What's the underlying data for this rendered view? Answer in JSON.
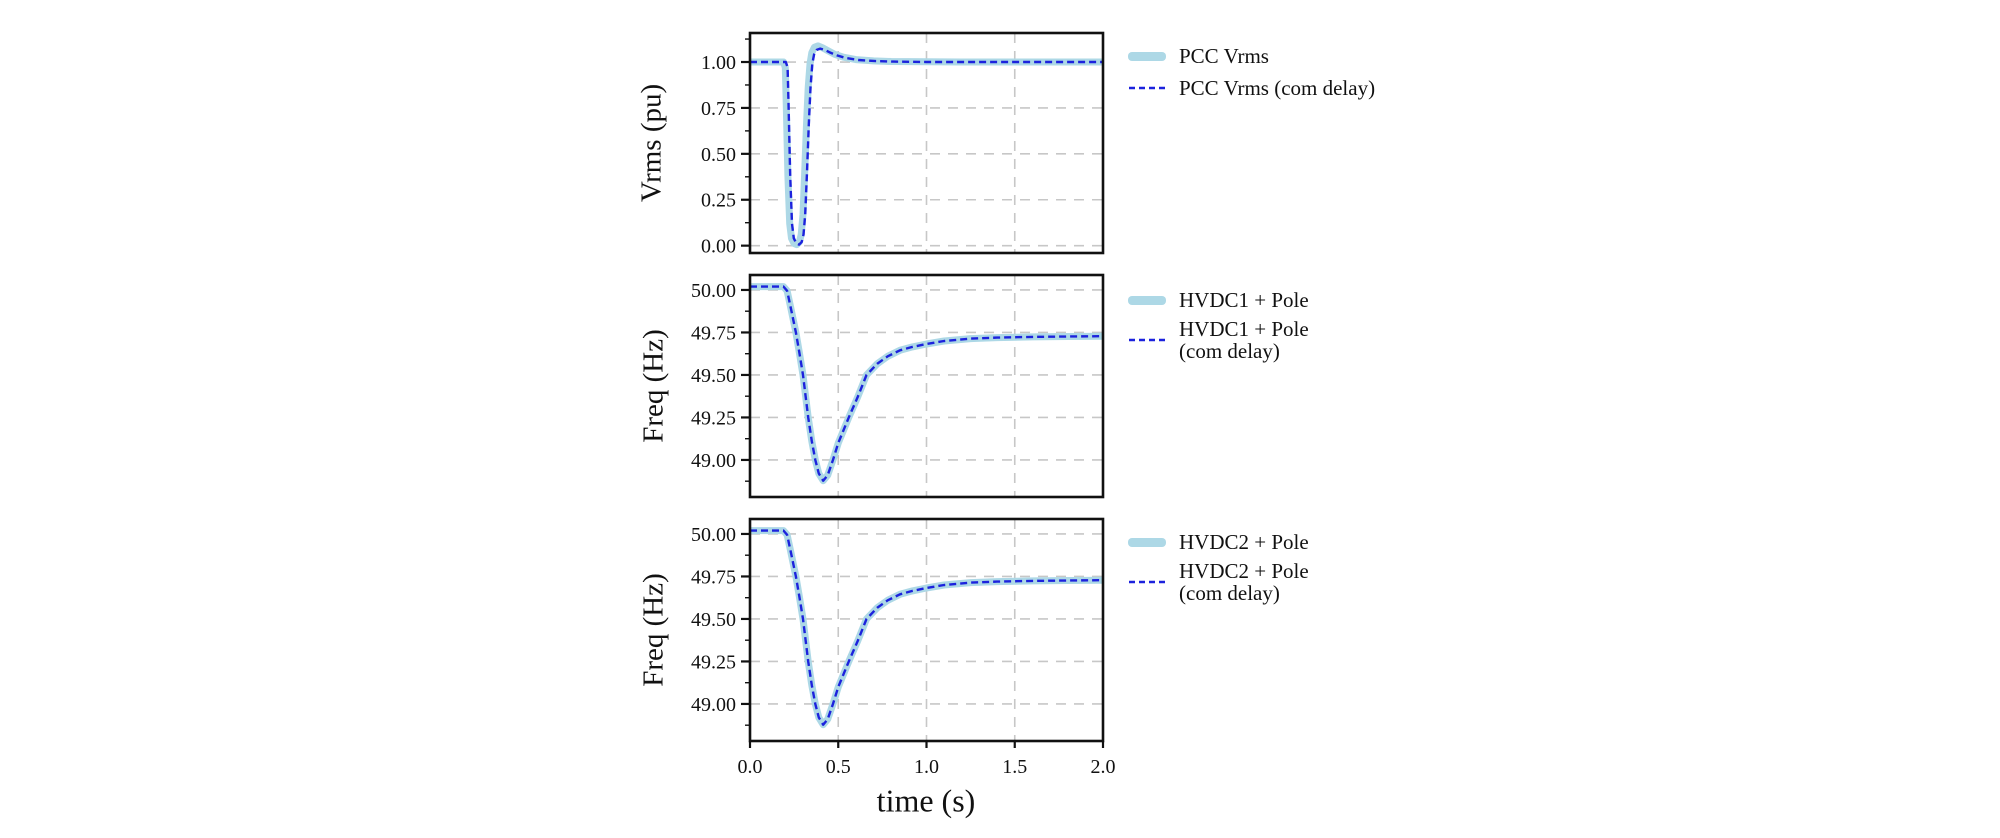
{
  "figure": {
    "colors": {
      "band": "#ADD8E6",
      "dash": "#1C22DD",
      "grid": "#C7C7C7",
      "frame": "#111111",
      "text": "#111111"
    },
    "x_axis": {
      "label": "time (s)",
      "lim": [
        0,
        2
      ],
      "ticks": [
        0,
        0.5,
        1,
        1.5,
        2
      ],
      "tick_labels": [
        "0.0",
        "0.5",
        "1.0",
        "1.5",
        "2.0"
      ]
    }
  },
  "chart_data": [
    {
      "type": "line",
      "ylabel": "Vrms (pu)",
      "ylim": [
        -0.04,
        1.158
      ],
      "grid": true,
      "yticks": [
        {
          "v": 1.0,
          "label": "1.00"
        },
        {
          "v": 0.75,
          "label": "0.75"
        },
        {
          "v": 0.5,
          "label": "0.50"
        },
        {
          "v": 0.25,
          "label": "0.25"
        },
        {
          "v": 0.0,
          "label": "0.00"
        }
      ],
      "yminor": [
        1.125,
        0.875,
        0.625,
        0.375,
        0.125
      ],
      "legend": [
        {
          "style": "band",
          "lines": [
            "PCC Vrms"
          ]
        },
        {
          "style": "dash",
          "lines": [
            "PCC Vrms (com delay)"
          ]
        }
      ],
      "series": [
        {
          "name": "PCC Vrms",
          "role": "band",
          "points": [
            [
              0,
              1.0
            ],
            [
              0.19,
              1.0
            ],
            [
              0.2,
              0.97
            ],
            [
              0.205,
              0.78
            ],
            [
              0.215,
              0.38
            ],
            [
              0.225,
              0.12
            ],
            [
              0.235,
              0.04
            ],
            [
              0.25,
              0.012
            ],
            [
              0.265,
              0.006
            ],
            [
              0.28,
              0.02
            ],
            [
              0.29,
              0.06
            ],
            [
              0.3,
              0.17
            ],
            [
              0.31,
              0.4
            ],
            [
              0.32,
              0.66
            ],
            [
              0.33,
              0.86
            ],
            [
              0.34,
              0.99
            ],
            [
              0.35,
              1.05
            ],
            [
              0.365,
              1.08
            ],
            [
              0.385,
              1.088
            ],
            [
              0.41,
              1.078
            ],
            [
              0.44,
              1.062
            ],
            [
              0.48,
              1.042
            ],
            [
              0.53,
              1.026
            ],
            [
              0.6,
              1.013
            ],
            [
              0.7,
              1.006
            ],
            [
              0.8,
              1.003
            ],
            [
              1.0,
              1.001
            ],
            [
              1.2,
              1.0
            ],
            [
              1.6,
              1.0
            ],
            [
              2.0,
              1.0
            ]
          ]
        },
        {
          "name": "PCC Vrms (com delay)",
          "role": "dash",
          "points": [
            [
              0,
              1.0
            ],
            [
              0.203,
              1.0
            ],
            [
              0.213,
              0.97
            ],
            [
              0.218,
              0.78
            ],
            [
              0.228,
              0.38
            ],
            [
              0.238,
              0.12
            ],
            [
              0.248,
              0.04
            ],
            [
              0.263,
              0.012
            ],
            [
              0.278,
              0.006
            ],
            [
              0.293,
              0.02
            ],
            [
              0.303,
              0.06
            ],
            [
              0.313,
              0.17
            ],
            [
              0.323,
              0.4
            ],
            [
              0.333,
              0.66
            ],
            [
              0.343,
              0.86
            ],
            [
              0.353,
              0.99
            ],
            [
              0.363,
              1.042
            ],
            [
              0.378,
              1.066
            ],
            [
              0.398,
              1.073
            ],
            [
              0.423,
              1.066
            ],
            [
              0.453,
              1.052
            ],
            [
              0.493,
              1.036
            ],
            [
              0.543,
              1.022
            ],
            [
              0.613,
              1.011
            ],
            [
              0.713,
              1.005
            ],
            [
              0.813,
              1.002
            ],
            [
              1.0,
              1.0
            ],
            [
              1.5,
              1.0
            ],
            [
              2.0,
              1.0
            ]
          ]
        }
      ]
    },
    {
      "type": "line",
      "ylabel": "Freq (Hz)",
      "ylim": [
        48.782,
        50.088
      ],
      "grid": true,
      "yticks": [
        {
          "v": 50.0,
          "label": "50.00"
        },
        {
          "v": 49.75,
          "label": "49.75"
        },
        {
          "v": 49.5,
          "label": "49.50"
        },
        {
          "v": 49.25,
          "label": "49.25"
        },
        {
          "v": 49.0,
          "label": "49.00"
        }
      ],
      "yminor": [
        49.875,
        49.625,
        49.375,
        49.125,
        48.875
      ],
      "legend": [
        {
          "style": "band",
          "lines": [
            "HVDC1 + Pole"
          ]
        },
        {
          "style": "dash",
          "lines": [
            "HVDC1 + Pole",
            "(com delay)"
          ]
        }
      ],
      "series": [
        {
          "name": "HVDC1 + Pole",
          "role": "band",
          "points": [
            [
              0,
              50.02
            ],
            [
              0.19,
              50.02
            ],
            [
              0.21,
              49.995
            ],
            [
              0.23,
              49.9
            ],
            [
              0.26,
              49.75
            ],
            [
              0.28,
              49.63
            ],
            [
              0.3,
              49.5
            ],
            [
              0.33,
              49.25
            ],
            [
              0.35,
              49.11
            ],
            [
              0.37,
              49.0
            ],
            [
              0.39,
              48.92
            ],
            [
              0.415,
              48.878
            ],
            [
              0.44,
              48.91
            ],
            [
              0.47,
              49.0
            ],
            [
              0.5,
              49.1
            ],
            [
              0.56,
              49.25
            ],
            [
              0.61,
              49.37
            ],
            [
              0.66,
              49.5
            ],
            [
              0.72,
              49.565
            ],
            [
              0.78,
              49.61
            ],
            [
              0.85,
              49.645
            ],
            [
              0.92,
              49.665
            ],
            [
              1.0,
              49.682
            ],
            [
              1.1,
              49.7
            ],
            [
              1.25,
              49.714
            ],
            [
              1.4,
              49.72
            ],
            [
              1.6,
              49.724
            ],
            [
              1.8,
              49.726
            ],
            [
              2.0,
              49.728
            ]
          ]
        },
        {
          "name": "HVDC1 + Pole (com delay)",
          "role": "dash",
          "points": [
            [
              0,
              50.02
            ],
            [
              0.19,
              50.02
            ],
            [
              0.21,
              49.995
            ],
            [
              0.23,
              49.9
            ],
            [
              0.26,
              49.75
            ],
            [
              0.28,
              49.63
            ],
            [
              0.3,
              49.5
            ],
            [
              0.33,
              49.25
            ],
            [
              0.35,
              49.11
            ],
            [
              0.37,
              49.0
            ],
            [
              0.39,
              48.92
            ],
            [
              0.415,
              48.878
            ],
            [
              0.44,
              48.91
            ],
            [
              0.47,
              49.0
            ],
            [
              0.5,
              49.1
            ],
            [
              0.56,
              49.25
            ],
            [
              0.61,
              49.37
            ],
            [
              0.66,
              49.5
            ],
            [
              0.72,
              49.565
            ],
            [
              0.78,
              49.61
            ],
            [
              0.85,
              49.645
            ],
            [
              0.92,
              49.665
            ],
            [
              1.0,
              49.682
            ],
            [
              1.1,
              49.7
            ],
            [
              1.25,
              49.714
            ],
            [
              1.4,
              49.72
            ],
            [
              1.6,
              49.724
            ],
            [
              1.8,
              49.726
            ],
            [
              2.0,
              49.728
            ]
          ]
        }
      ]
    },
    {
      "type": "line",
      "ylabel": "Freq (Hz)",
      "ylim": [
        48.782,
        50.088
      ],
      "grid": true,
      "yticks": [
        {
          "v": 50.0,
          "label": "50.00"
        },
        {
          "v": 49.75,
          "label": "49.75"
        },
        {
          "v": 49.5,
          "label": "49.50"
        },
        {
          "v": 49.25,
          "label": "49.25"
        },
        {
          "v": 49.0,
          "label": "49.00"
        }
      ],
      "yminor": [
        49.875,
        49.625,
        49.375,
        49.125,
        48.875
      ],
      "legend": [
        {
          "style": "band",
          "lines": [
            "HVDC2 + Pole"
          ]
        },
        {
          "style": "dash",
          "lines": [
            "HVDC2 + Pole",
            "(com delay)"
          ]
        }
      ],
      "series": [
        {
          "name": "HVDC2 + Pole",
          "role": "band",
          "points": [
            [
              0,
              50.02
            ],
            [
              0.19,
              50.02
            ],
            [
              0.21,
              49.995
            ],
            [
              0.23,
              49.9
            ],
            [
              0.26,
              49.75
            ],
            [
              0.28,
              49.63
            ],
            [
              0.3,
              49.5
            ],
            [
              0.33,
              49.25
            ],
            [
              0.35,
              49.11
            ],
            [
              0.37,
              49.0
            ],
            [
              0.39,
              48.92
            ],
            [
              0.415,
              48.878
            ],
            [
              0.44,
              48.91
            ],
            [
              0.47,
              49.0
            ],
            [
              0.5,
              49.1
            ],
            [
              0.56,
              49.25
            ],
            [
              0.61,
              49.37
            ],
            [
              0.66,
              49.5
            ],
            [
              0.72,
              49.565
            ],
            [
              0.78,
              49.61
            ],
            [
              0.85,
              49.645
            ],
            [
              0.92,
              49.665
            ],
            [
              1.0,
              49.682
            ],
            [
              1.1,
              49.7
            ],
            [
              1.25,
              49.714
            ],
            [
              1.4,
              49.72
            ],
            [
              1.6,
              49.724
            ],
            [
              1.8,
              49.726
            ],
            [
              2.0,
              49.728
            ]
          ]
        },
        {
          "name": "HVDC2 + Pole (com delay)",
          "role": "dash",
          "points": [
            [
              0,
              50.02
            ],
            [
              0.19,
              50.02
            ],
            [
              0.21,
              49.995
            ],
            [
              0.23,
              49.9
            ],
            [
              0.26,
              49.75
            ],
            [
              0.28,
              49.63
            ],
            [
              0.3,
              49.5
            ],
            [
              0.33,
              49.25
            ],
            [
              0.35,
              49.11
            ],
            [
              0.37,
              49.0
            ],
            [
              0.39,
              48.92
            ],
            [
              0.415,
              48.878
            ],
            [
              0.44,
              48.91
            ],
            [
              0.47,
              49.0
            ],
            [
              0.5,
              49.1
            ],
            [
              0.56,
              49.25
            ],
            [
              0.61,
              49.37
            ],
            [
              0.66,
              49.5
            ],
            [
              0.72,
              49.565
            ],
            [
              0.78,
              49.61
            ],
            [
              0.85,
              49.645
            ],
            [
              0.92,
              49.665
            ],
            [
              1.0,
              49.682
            ],
            [
              1.1,
              49.7
            ],
            [
              1.25,
              49.714
            ],
            [
              1.4,
              49.72
            ],
            [
              1.6,
              49.724
            ],
            [
              1.8,
              49.726
            ],
            [
              2.0,
              49.728
            ]
          ]
        }
      ]
    }
  ]
}
